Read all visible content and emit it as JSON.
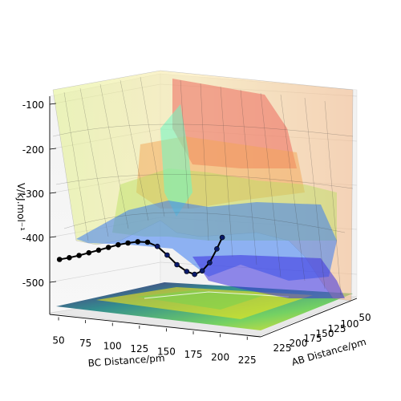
{
  "chart_data": {
    "type": "surface3d",
    "title": "",
    "xlabel": "BC Distance/pm",
    "ylabel": "AB Distance/pm",
    "zlabel": "V/kJ.mol⁻¹",
    "x_ticks": [
      "50",
      "75",
      "100",
      "125",
      "150",
      "175",
      "200",
      "225"
    ],
    "y_ticks": [
      "50",
      "100",
      "125",
      "150",
      "175",
      "200",
      "225"
    ],
    "z_ticks": [
      "-100",
      "-200",
      "-300",
      "-400",
      "-500"
    ],
    "xlim": [
      40,
      240
    ],
    "ylim": [
      40,
      240
    ],
    "zlim": [
      -560,
      -80
    ],
    "surface_colormap": "jet",
    "contour_colormap": "viridis",
    "grid": true,
    "series": [
      {
        "kind": "trajectory",
        "color": "#000000",
        "points": [
          {
            "bc": 50,
            "ab": 230,
            "v": -440
          },
          {
            "bc": 60,
            "ab": 220,
            "v": -437
          },
          {
            "bc": 70,
            "ab": 210,
            "v": -433
          },
          {
            "bc": 80,
            "ab": 200,
            "v": -428
          },
          {
            "bc": 90,
            "ab": 190,
            "v": -423
          },
          {
            "bc": 100,
            "ab": 180,
            "v": -418
          },
          {
            "bc": 110,
            "ab": 170,
            "v": -413
          },
          {
            "bc": 120,
            "ab": 160,
            "v": -410
          },
          {
            "bc": 130,
            "ab": 150,
            "v": -408
          },
          {
            "bc": 140,
            "ab": 140,
            "v": -410
          },
          {
            "bc": 150,
            "ab": 130,
            "v": -420
          },
          {
            "bc": 160,
            "ab": 120,
            "v": -440
          },
          {
            "bc": 170,
            "ab": 110,
            "v": -462
          },
          {
            "bc": 180,
            "ab": 100,
            "v": -478
          },
          {
            "bc": 188,
            "ab": 92,
            "v": -485
          },
          {
            "bc": 196,
            "ab": 86,
            "v": -478
          },
          {
            "bc": 204,
            "ab": 82,
            "v": -460
          },
          {
            "bc": 212,
            "ab": 80,
            "v": -430
          },
          {
            "bc": 218,
            "ab": 79,
            "v": -405
          }
        ]
      }
    ]
  }
}
